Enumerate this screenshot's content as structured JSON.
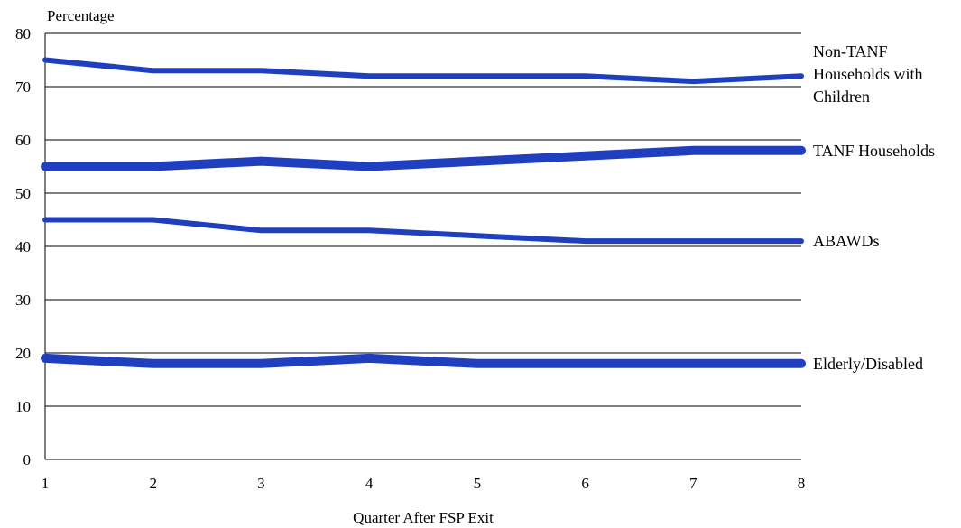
{
  "chart_data": {
    "type": "line",
    "title": "",
    "ylabel": "Percentage",
    "xlabel": "Quarter After FSP Exit",
    "x": [
      1,
      2,
      3,
      4,
      5,
      6,
      7,
      8
    ],
    "xlim": [
      1,
      8
    ],
    "ylim": [
      0,
      80
    ],
    "yticks": [
      0,
      10,
      20,
      30,
      40,
      50,
      60,
      70,
      80
    ],
    "grid": "horizontal",
    "legend": "labels at right end of each line",
    "series": [
      {
        "name": "Non-TANF Households with Children",
        "label_lines": [
          "Non-TANF",
          "Households with",
          "Children"
        ],
        "values": [
          75,
          73,
          73,
          72,
          72,
          72,
          71,
          72
        ],
        "color": "#1f3fbf"
      },
      {
        "name": "TANF Households",
        "label_lines": [
          "TANF Households"
        ],
        "values": [
          55,
          55,
          56,
          55,
          56,
          57,
          58,
          58
        ],
        "color": "#1f3fbf"
      },
      {
        "name": "ABAWDs",
        "label_lines": [
          "ABAWDs"
        ],
        "values": [
          45,
          45,
          43,
          43,
          42,
          41,
          41,
          41
        ],
        "color": "#1f3fbf"
      },
      {
        "name": "Elderly/Disabled",
        "label_lines": [
          "Elderly/Disabled"
        ],
        "values": [
          19,
          18,
          18,
          19,
          18,
          18,
          18,
          18
        ],
        "color": "#1f3fbf"
      }
    ]
  }
}
